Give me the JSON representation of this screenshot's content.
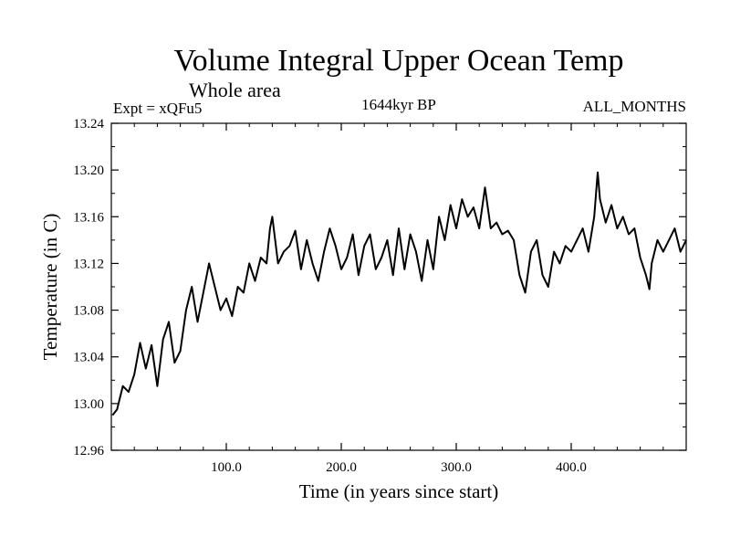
{
  "chart_data": {
    "type": "line",
    "title": "Volume Integral Upper Ocean Temp",
    "subtitle": "Whole area",
    "experiment": "Expt = xQFu5",
    "period": "1644kyr BP",
    "months": "ALL_MONTHS",
    "xlabel": "Time (in years since start)",
    "ylabel": "Temperature (in C)",
    "xlim": [
      0,
      500
    ],
    "ylim": [
      12.96,
      13.24
    ],
    "xticks": [
      100,
      200,
      300,
      400
    ],
    "xtick_labels": [
      "100.0",
      "200.0",
      "300.0",
      "400.0"
    ],
    "yticks": [
      12.96,
      13.0,
      13.04,
      13.08,
      13.12,
      13.16,
      13.2,
      13.24
    ],
    "ytick_labels": [
      "12.96",
      "13.00",
      "13.04",
      "13.08",
      "13.12",
      "13.16",
      "13.20",
      "13.24"
    ],
    "line_color": "#000000",
    "series": [
      {
        "name": "Volume Integral Upper Ocean Temp",
        "x": [
          1,
          5,
          10,
          15,
          20,
          25,
          30,
          35,
          40,
          45,
          50,
          55,
          60,
          65,
          70,
          75,
          80,
          85,
          90,
          95,
          100,
          105,
          110,
          115,
          120,
          125,
          130,
          135,
          138,
          140,
          145,
          150,
          155,
          160,
          165,
          170,
          175,
          180,
          185,
          190,
          195,
          200,
          205,
          210,
          215,
          220,
          225,
          230,
          235,
          240,
          245,
          250,
          255,
          260,
          265,
          270,
          275,
          280,
          285,
          290,
          295,
          300,
          305,
          310,
          315,
          320,
          325,
          330,
          335,
          340,
          345,
          350,
          355,
          360,
          365,
          370,
          375,
          380,
          385,
          390,
          395,
          400,
          405,
          410,
          415,
          420,
          423,
          425,
          430,
          435,
          440,
          445,
          450,
          455,
          460,
          465,
          468,
          470,
          475,
          480,
          485,
          490,
          495,
          500
        ],
        "y": [
          12.99,
          12.995,
          13.015,
          13.01,
          13.025,
          13.052,
          13.03,
          13.05,
          13.015,
          13.055,
          13.07,
          13.035,
          13.045,
          13.08,
          13.1,
          13.07,
          13.095,
          13.12,
          13.1,
          13.08,
          13.09,
          13.075,
          13.1,
          13.095,
          13.12,
          13.105,
          13.125,
          13.12,
          13.15,
          13.16,
          13.12,
          13.13,
          13.135,
          13.148,
          13.115,
          13.14,
          13.12,
          13.105,
          13.13,
          13.15,
          13.135,
          13.115,
          13.125,
          13.145,
          13.11,
          13.135,
          13.145,
          13.115,
          13.125,
          13.14,
          13.11,
          13.15,
          13.115,
          13.145,
          13.13,
          13.105,
          13.14,
          13.115,
          13.16,
          13.14,
          13.17,
          13.15,
          13.175,
          13.16,
          13.168,
          13.15,
          13.185,
          13.15,
          13.155,
          13.145,
          13.148,
          13.14,
          13.11,
          13.095,
          13.13,
          13.14,
          13.11,
          13.1,
          13.13,
          13.12,
          13.135,
          13.13,
          13.14,
          13.15,
          13.13,
          13.16,
          13.198,
          13.175,
          13.155,
          13.17,
          13.15,
          13.16,
          13.145,
          13.15,
          13.125,
          13.11,
          13.098,
          13.12,
          13.14,
          13.13,
          13.14,
          13.15,
          13.13,
          13.14
        ]
      }
    ]
  }
}
